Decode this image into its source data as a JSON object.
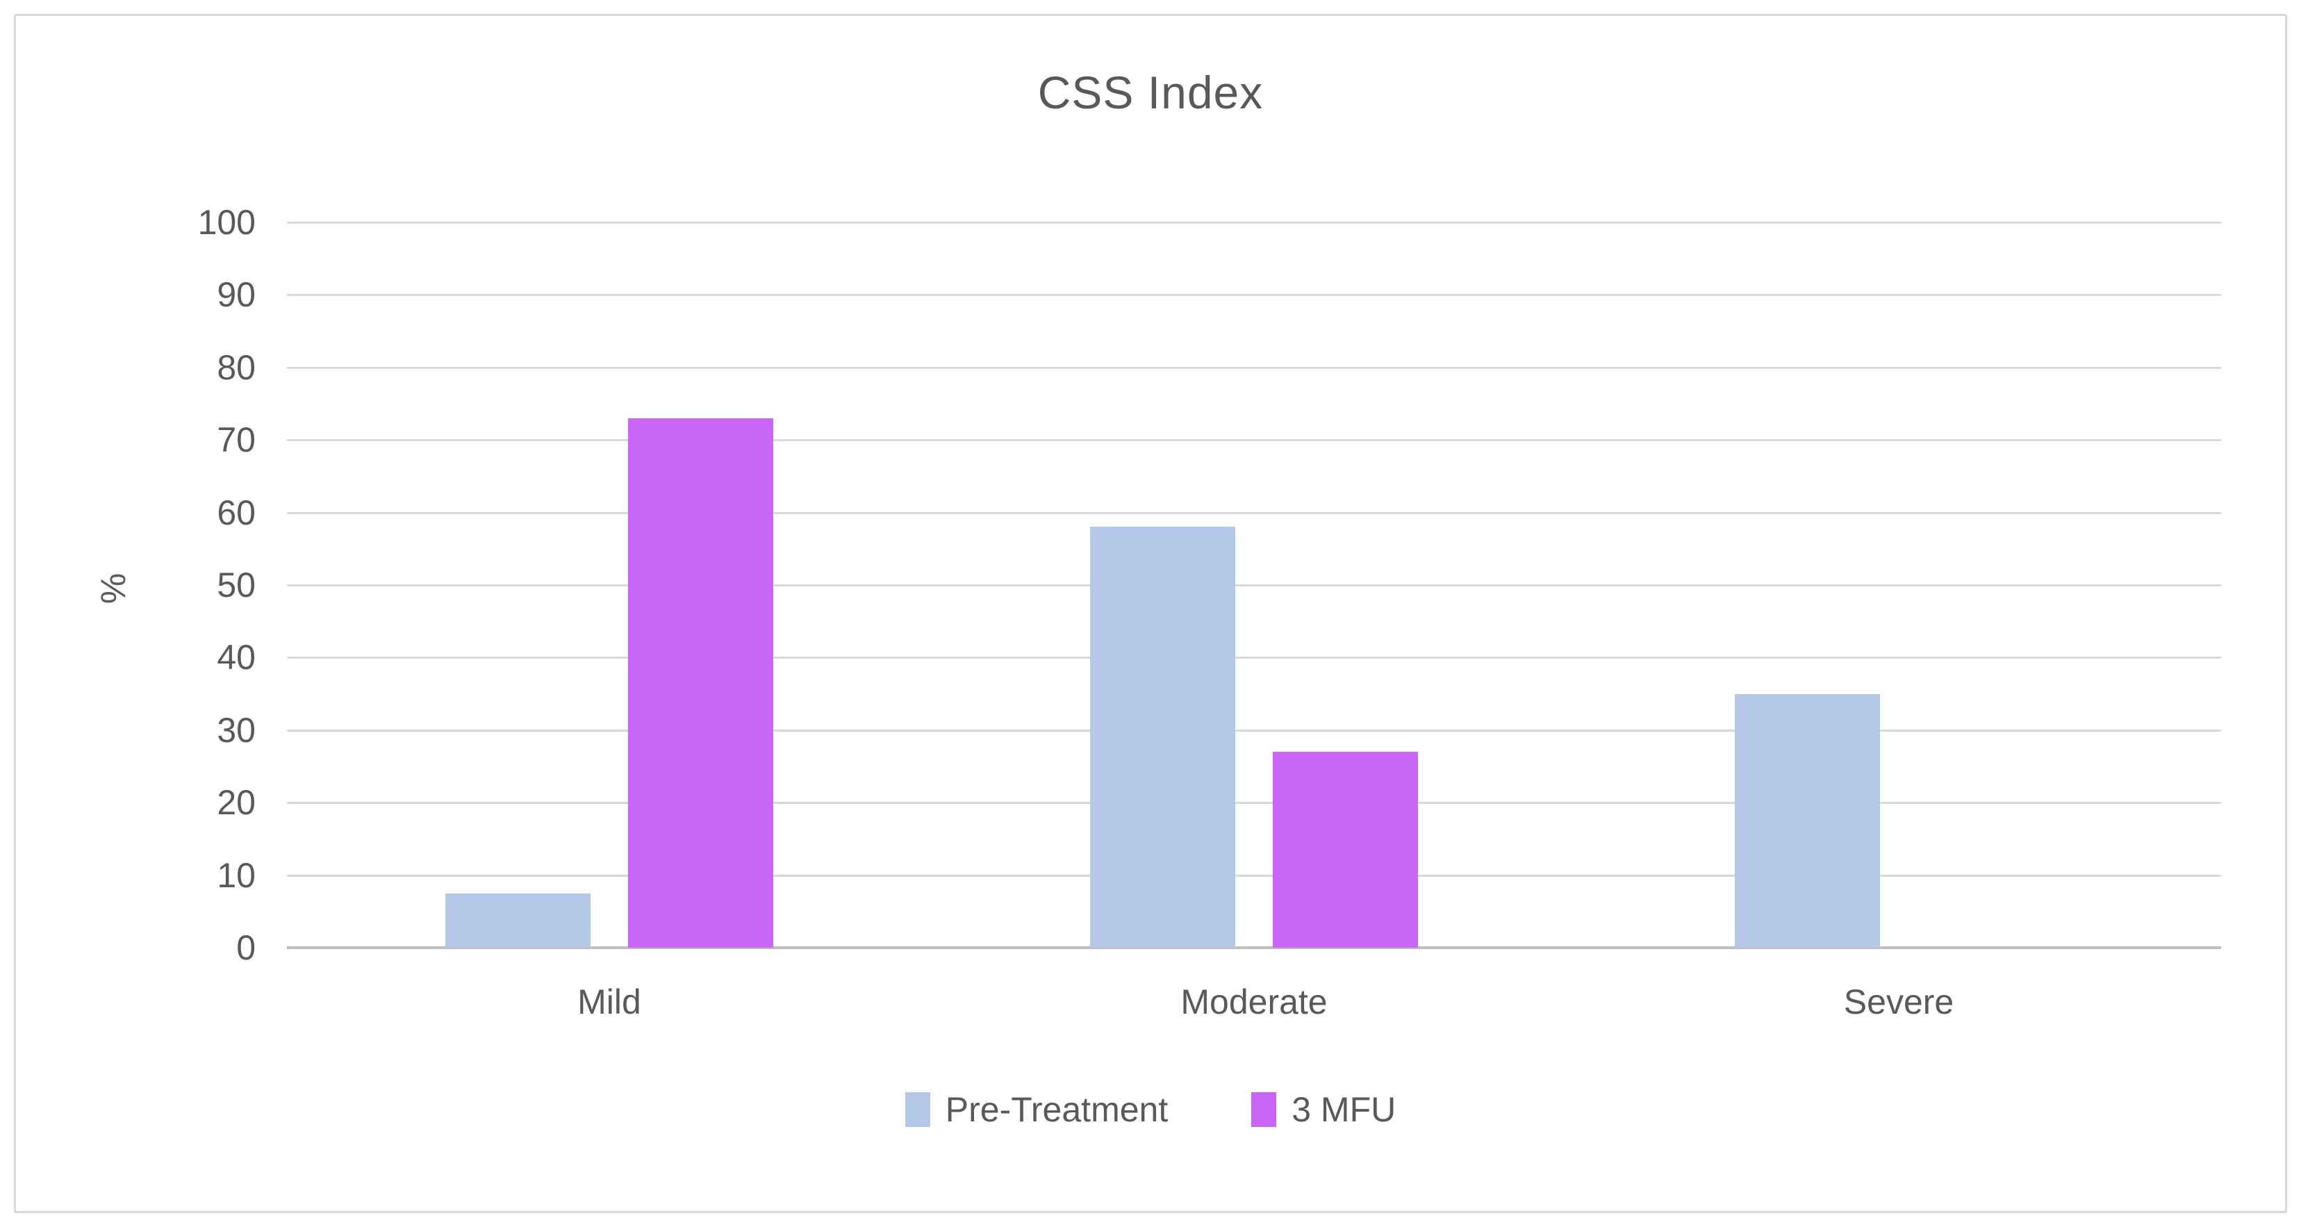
{
  "figure": {
    "background": "#FFFFFF",
    "border_color": "#D8D8D8"
  },
  "chart_data": {
    "type": "bar",
    "title": "CSS Index",
    "ylabel": "%",
    "xlabel": "",
    "categories": [
      "Mild",
      "Moderate",
      "Severe"
    ],
    "series": [
      {
        "name": "Pre-Treatment",
        "color": "#B4C7E7",
        "values": [
          7.5,
          58,
          35
        ]
      },
      {
        "name": "3 MFU",
        "color": "#C966F7",
        "values": [
          73,
          27,
          0
        ]
      }
    ],
    "ylim": [
      0,
      100
    ],
    "yticks": [
      0,
      10,
      20,
      30,
      40,
      50,
      60,
      70,
      80,
      90,
      100
    ],
    "grid": "horizontal",
    "gridline_color": "#D9D9D9",
    "axis_line_color": "#BFBFBF",
    "text_color": "#595959",
    "legend_position": "bottom"
  }
}
